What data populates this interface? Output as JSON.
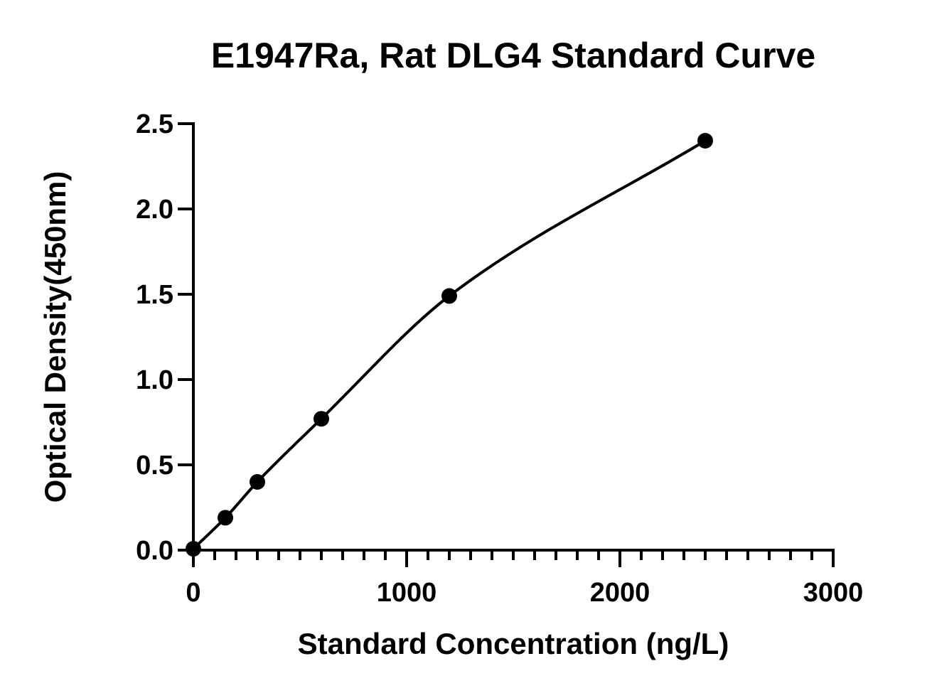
{
  "chart_data": {
    "type": "scatter",
    "title": "E1947Ra, Rat DLG4 Standard Curve",
    "xlabel": "Standard Concentration (ng/L)",
    "ylabel": "Optical Density(450nm)",
    "xlim": [
      0,
      3000
    ],
    "ylim": [
      0,
      2.5
    ],
    "x_ticks": [
      "0",
      "1000",
      "2000",
      "3000"
    ],
    "y_ticks": [
      "0.0",
      "0.5",
      "1.0",
      "1.5",
      "2.0",
      "2.5"
    ],
    "x_tick_values": [
      0,
      1000,
      2000,
      3000
    ],
    "y_tick_values": [
      0,
      0.5,
      1.0,
      1.5,
      2.0,
      2.5
    ],
    "x_minor_step": 100,
    "grid": false,
    "fit_curve": true,
    "series": [
      {
        "x": [
          0,
          150,
          300,
          600,
          1200,
          2400
        ],
        "y": [
          0.008,
          0.19,
          0.4,
          0.77,
          1.49,
          2.4
        ]
      }
    ],
    "colors": {
      "marker": "#000000",
      "line": "#000000",
      "axis": "#000000"
    }
  }
}
